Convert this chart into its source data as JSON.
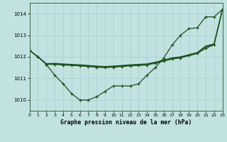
{
  "title": "Graphe pression niveau de la mer (hPa)",
  "bg": "#c2e2e2",
  "grid_color": "#a8cccc",
  "line_color": "#1a5218",
  "xlim": [
    0,
    23
  ],
  "ylim": [
    1009.5,
    1014.5
  ],
  "yticks": [
    1010,
    1011,
    1012,
    1013,
    1014
  ],
  "xticks": [
    0,
    1,
    2,
    3,
    4,
    5,
    6,
    7,
    8,
    9,
    10,
    11,
    12,
    13,
    14,
    15,
    16,
    17,
    18,
    19,
    20,
    21,
    22,
    23
  ],
  "series": [
    {
      "y": [
        1012.3,
        1012.0,
        1011.65,
        1011.15,
        1010.75,
        1010.3,
        1010.0,
        1010.0,
        1010.15,
        1010.4,
        1010.65,
        1010.65,
        1010.65,
        1010.75,
        1011.15,
        1011.5,
        1011.95,
        1012.55,
        1013.0,
        1013.3,
        1013.35,
        1013.85,
        1013.85,
        1014.2
      ],
      "marker": true
    },
    {
      "y": [
        1012.3,
        1012.0,
        1011.65,
        1011.65,
        1011.62,
        1011.6,
        1011.58,
        1011.55,
        1011.52,
        1011.5,
        1011.52,
        1011.55,
        1011.58,
        1011.6,
        1011.62,
        1011.7,
        1011.8,
        1011.9,
        1011.95,
        1012.05,
        1012.15,
        1012.4,
        1012.55,
        1014.2
      ],
      "marker": true
    },
    {
      "y": [
        1012.3,
        1012.0,
        1011.68,
        1011.68,
        1011.65,
        1011.63,
        1011.6,
        1011.58,
        1011.55,
        1011.53,
        1011.55,
        1011.58,
        1011.6,
        1011.63,
        1011.65,
        1011.73,
        1011.83,
        1011.93,
        1011.98,
        1012.08,
        1012.18,
        1012.45,
        1012.58,
        1014.2
      ],
      "marker": false
    },
    {
      "y": [
        1012.3,
        1012.0,
        1011.68,
        1011.7,
        1011.67,
        1011.65,
        1011.63,
        1011.6,
        1011.57,
        1011.55,
        1011.57,
        1011.6,
        1011.63,
        1011.65,
        1011.67,
        1011.75,
        1011.85,
        1011.95,
        1012.0,
        1012.1,
        1012.2,
        1012.5,
        1012.6,
        1014.2
      ],
      "marker": false
    }
  ]
}
